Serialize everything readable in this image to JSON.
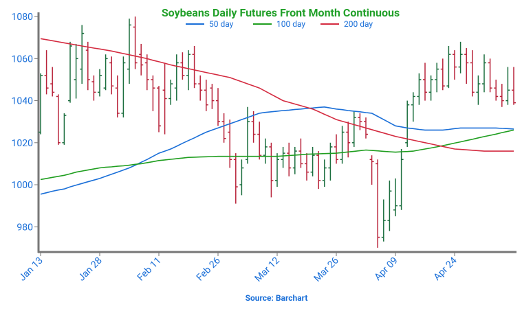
{
  "chart_data": {
    "type": "ohlc",
    "title": "Soybeans Daily Futures Front Month Continuous",
    "source": "Source: Barchart",
    "up_color": "#1b6e3e",
    "down_color": "#b8233a",
    "categories": [
      "Jan 13",
      null,
      null,
      null,
      null,
      null,
      null,
      null,
      null,
      null,
      "Jan 28",
      null,
      null,
      null,
      null,
      null,
      null,
      null,
      null,
      null,
      "Feb 11",
      null,
      null,
      null,
      null,
      null,
      null,
      null,
      null,
      null,
      "Feb 26",
      null,
      null,
      null,
      null,
      null,
      null,
      null,
      null,
      null,
      "Mar 12",
      null,
      null,
      null,
      null,
      null,
      null,
      null,
      null,
      null,
      "Mar 26",
      null,
      null,
      null,
      null,
      null,
      null,
      null,
      null,
      null,
      "Apr 09",
      null,
      null,
      null,
      null,
      null,
      null,
      null,
      null,
      null,
      "Apr 24",
      null,
      null,
      null,
      null,
      null,
      null,
      null,
      null,
      null,
      null
    ],
    "ohlc": [
      [
        1025,
        1053,
        1024,
        1052
      ],
      [
        1052,
        1064,
        1043,
        1046
      ],
      [
        1048,
        1056,
        1042,
        1044
      ],
      [
        1042,
        1043,
        1019,
        1020
      ],
      [
        1020,
        1034,
        1019,
        1033
      ],
      [
        1040,
        1068,
        1039,
        1066
      ],
      [
        1050,
        1067,
        1041,
        1060
      ],
      [
        1055,
        1076,
        1048,
        1072
      ],
      [
        1064,
        1068,
        1045,
        1050
      ],
      [
        1049,
        1052,
        1040,
        1044
      ],
      [
        1044,
        1055,
        1042,
        1052
      ],
      [
        1046,
        1062,
        1045,
        1060
      ],
      [
        1058,
        1061,
        1043,
        1047
      ],
      [
        1046,
        1052,
        1032,
        1034
      ],
      [
        1034,
        1061,
        1032,
        1058
      ],
      [
        1055,
        1079,
        1048,
        1076
      ],
      [
        1075,
        1080,
        1055,
        1058
      ],
      [
        1062,
        1067,
        1052,
        1057
      ],
      [
        1058,
        1062,
        1045,
        1050
      ],
      [
        1050,
        1052,
        1035,
        1046
      ],
      [
        1046,
        1047,
        1025,
        1028
      ],
      [
        1045,
        1058,
        1024,
        1041
      ],
      [
        1041,
        1050,
        1038,
        1048
      ],
      [
        1046,
        1062,
        1040,
        1058
      ],
      [
        1058,
        1063,
        1050,
        1052
      ],
      [
        1052,
        1064,
        1045,
        1062
      ],
      [
        1062,
        1066,
        1046,
        1048
      ],
      [
        1048,
        1052,
        1040,
        1045
      ],
      [
        1045,
        1050,
        1035,
        1038
      ],
      [
        1046,
        1048,
        1036,
        1040
      ],
      [
        1040,
        1046,
        1028,
        1030
      ],
      [
        1030,
        1034,
        1020,
        1022
      ],
      [
        1025,
        1031,
        1008,
        1012
      ],
      [
        1012,
        1015,
        991,
        999
      ],
      [
        1000,
        1012,
        995,
        1008
      ],
      [
        1012,
        1037,
        1010,
        1030
      ],
      [
        1030,
        1035,
        1020,
        1024
      ],
      [
        1024,
        1030,
        1012,
        1014
      ],
      [
        1014,
        1022,
        1010,
        1018
      ],
      [
        1018,
        1020,
        994,
        1002
      ],
      [
        1002,
        1015,
        999,
        1012
      ],
      [
        1012,
        1018,
        1008,
        1015
      ],
      [
        1015,
        1020,
        1004,
        1008
      ],
      [
        1008,
        1018,
        1005,
        1016
      ],
      [
        1016,
        1022,
        1008,
        1010
      ],
      [
        1010,
        1015,
        1002,
        1006
      ],
      [
        1006,
        1018,
        1004,
        1014
      ],
      [
        1014,
        1016,
        998,
        1002
      ],
      [
        1002,
        1012,
        999,
        1008
      ],
      [
        1008,
        1020,
        1002,
        1018
      ],
      [
        1018,
        1024,
        1010,
        1012
      ],
      [
        1012,
        1028,
        1010,
        1025
      ],
      [
        1025,
        1030,
        1013,
        1020
      ],
      [
        1020,
        1035,
        1018,
        1032
      ],
      [
        1032,
        1034,
        1026,
        1030
      ],
      [
        1030,
        1032,
        1022,
        1024
      ],
      [
        1012,
        1014,
        1000,
        1011
      ],
      [
        1010,
        1012,
        970,
        975
      ],
      [
        975,
        993,
        973,
        983
      ],
      [
        983,
        1002,
        978,
        997
      ],
      [
        988,
        1003,
        985,
        990
      ],
      [
        990,
        1017,
        988,
        1012
      ],
      [
        1020,
        1040,
        1018,
        1038
      ],
      [
        1038,
        1044,
        1030,
        1042
      ],
      [
        1042,
        1053,
        1038,
        1050
      ],
      [
        1050,
        1058,
        1040,
        1044
      ],
      [
        1044,
        1052,
        1040,
        1050
      ],
      [
        1050,
        1058,
        1044,
        1055
      ],
      [
        1055,
        1060,
        1045,
        1047
      ],
      [
        1047,
        1066,
        1046,
        1062
      ],
      [
        1062,
        1064,
        1050,
        1056
      ],
      [
        1056,
        1068,
        1053,
        1062
      ],
      [
        1062,
        1065,
        1048,
        1058
      ],
      [
        1058,
        1064,
        1042,
        1044
      ],
      [
        1044,
        1052,
        1038,
        1048
      ],
      [
        1048,
        1062,
        1044,
        1058
      ],
      [
        1058,
        1060,
        1044,
        1046
      ],
      [
        1046,
        1050,
        1040,
        1042
      ],
      [
        1042,
        1048,
        1037,
        1040
      ],
      [
        1040,
        1056,
        1038,
        1045
      ],
      [
        1045,
        1056,
        1038,
        1039
      ]
    ],
    "series": [
      {
        "name": "50 day",
        "color": "#1a6fd8",
        "values": [
          995.5,
          996.2,
          996.9,
          997.5,
          998,
          999,
          999.8,
          1000.6,
          1001.4,
          1002.2,
          1003,
          1004,
          1005,
          1006,
          1007,
          1008,
          1009.3,
          1010.7,
          1012,
          1013.5,
          1015,
          1016,
          1017,
          1018.3,
          1019.7,
          1021,
          1022.3,
          1023.7,
          1025,
          1026,
          1027,
          1028,
          1029,
          1030,
          1031,
          1032,
          1033,
          1034,
          1034.4,
          1034.7,
          1035,
          1035.3,
          1035.5,
          1035.8,
          1036,
          1036.3,
          1036.5,
          1036.8,
          1037,
          1036.5,
          1036,
          1035.7,
          1035.3,
          1035,
          1034.7,
          1034.3,
          1034,
          1032.5,
          1031,
          1029.5,
          1028,
          1027.5,
          1027,
          1026.7,
          1026.3,
          1026,
          1026,
          1026,
          1026,
          1026.3,
          1026.7,
          1027,
          1027,
          1027,
          1027,
          1027,
          1027,
          1027,
          1026.8,
          1026.7,
          1026.5
        ]
      },
      {
        "name": "100 day",
        "color": "#1f9e1f",
        "values": [
          1002.5,
          1003,
          1003.5,
          1004,
          1004.5,
          1005.2,
          1006,
          1006.5,
          1007,
          1007.5,
          1008,
          1008.3,
          1008.5,
          1008.8,
          1009,
          1009.3,
          1009.7,
          1010,
          1010.5,
          1011,
          1011.5,
          1011.8,
          1012.1,
          1012.4,
          1012.7,
          1013,
          1013.1,
          1013.2,
          1013.3,
          1013.4,
          1013.5,
          1013.5,
          1013.5,
          1013.5,
          1013.5,
          1013.5,
          1013.5,
          1013.5,
          1013.5,
          1013.5,
          1013.5,
          1013.7,
          1013.9,
          1014.1,
          1014.3,
          1014.5,
          1014.6,
          1014.7,
          1014.8,
          1014.9,
          1015,
          1015.3,
          1015.6,
          1015.9,
          1016.2,
          1016.5,
          1016.3,
          1016.1,
          1015.9,
          1015.7,
          1015.5,
          1015.7,
          1015.8,
          1016,
          1016.5,
          1017,
          1017.5,
          1018,
          1018.6,
          1019.2,
          1019.8,
          1020.4,
          1021,
          1021.6,
          1022.3,
          1022.9,
          1023.5,
          1024.1,
          1024.8,
          1025.4,
          1026
        ]
      },
      {
        "name": "200 day",
        "color": "#d42b40",
        "values": [
          1069.5,
          1069,
          1068.5,
          1068,
          1067.5,
          1067,
          1066.5,
          1066,
          1065.5,
          1065,
          1064.6,
          1064.1,
          1063.6,
          1063,
          1062.4,
          1061.8,
          1061.2,
          1060.6,
          1060,
          1059.2,
          1058.5,
          1057.8,
          1057,
          1056.4,
          1055.8,
          1055.2,
          1054.6,
          1054,
          1053.4,
          1052.8,
          1052.2,
          1051.6,
          1051,
          1050,
          1049,
          1048,
          1047,
          1046,
          1044.5,
          1043,
          1041.5,
          1040,
          1039.2,
          1038.4,
          1037.6,
          1036.8,
          1036,
          1034.8,
          1033.5,
          1032.3,
          1031,
          1030.2,
          1029.4,
          1028.6,
          1027.8,
          1027,
          1026.2,
          1025.4,
          1024.6,
          1023.8,
          1023,
          1022.4,
          1021.8,
          1021.2,
          1020.6,
          1020,
          1019.4,
          1018.8,
          1018.2,
          1017.6,
          1017,
          1016.8,
          1016.6,
          1016.4,
          1016.2,
          1016,
          1016,
          1016,
          1016,
          1016,
          1016
        ]
      }
    ],
    "ylim": [
      968,
      1082
    ],
    "yticks": [
      980,
      1000,
      1020,
      1040,
      1060,
      1080
    ]
  }
}
